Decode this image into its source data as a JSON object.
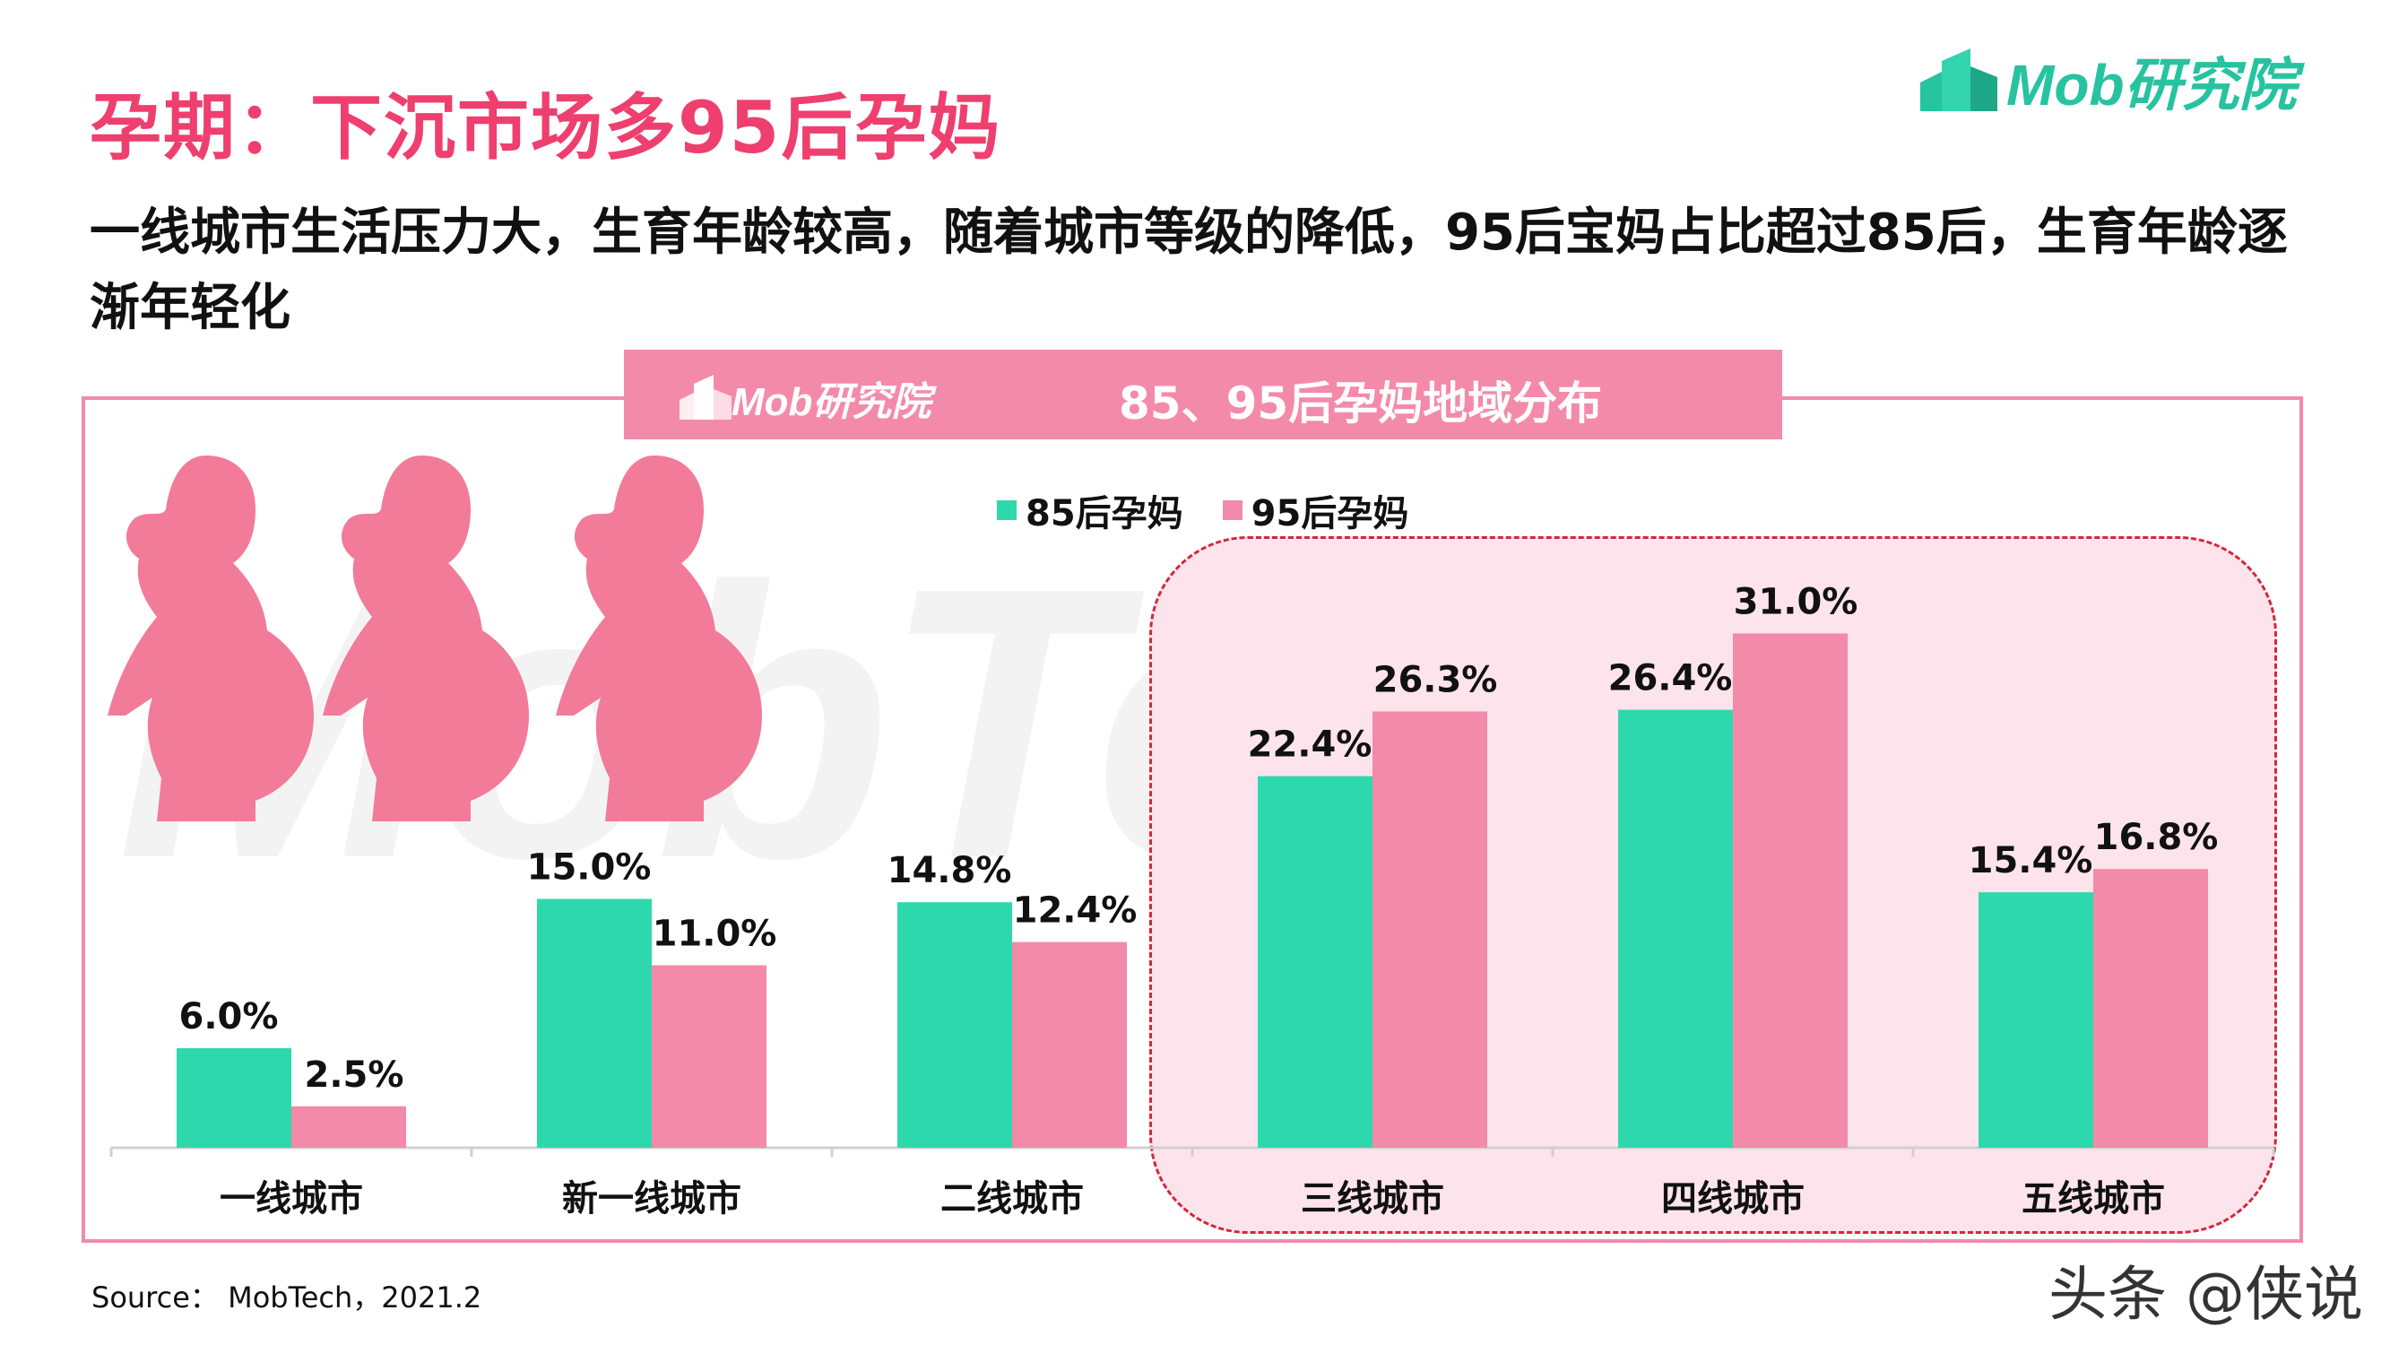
{
  "slide": {
    "title": "孕期：下沉市场多95后孕妈",
    "subtitle": "一线城市生活压力大，生育年龄较高，随着城市等级的降低，95后宝妈占比超过85后，生育年龄逐渐年轻化",
    "logo_text": "Mob研究院",
    "banner_logo_text": "Mob研究院",
    "banner_title": "85、95后孕妈地域分布",
    "watermark": "MobTech",
    "source": "Source： MobTech，2021.2",
    "credit": "头条 @侠说",
    "colors": {
      "accent": "#ee3f6f",
      "green": "#2ed8ad",
      "pink": "#f48aa9",
      "highlight": "#fde4ec"
    }
  },
  "chart_data": {
    "type": "bar",
    "title": "85、95后孕妈地域分布",
    "categories": [
      "一线城市",
      "新一线城市",
      "二线城市",
      "三线城市",
      "四线城市",
      "五线城市"
    ],
    "series": [
      {
        "name": "85后孕妈",
        "color": "#2ed8ad",
        "values": [
          6.0,
          15.0,
          14.8,
          22.4,
          26.4,
          15.4
        ],
        "labels": [
          "6.0%",
          "15.0%",
          "14.8%",
          "22.4%",
          "26.4%",
          "15.4%"
        ]
      },
      {
        "name": "95后孕妈",
        "color": "#f48aa9",
        "values": [
          2.5,
          11.0,
          12.4,
          26.3,
          31.0,
          16.8
        ],
        "labels": [
          "2.5%",
          "11.0%",
          "12.4%",
          "26.3%",
          "31.0%",
          "16.8%"
        ]
      }
    ],
    "ylim": [
      0,
      35
    ],
    "legend_position": "top",
    "grid": false
  }
}
